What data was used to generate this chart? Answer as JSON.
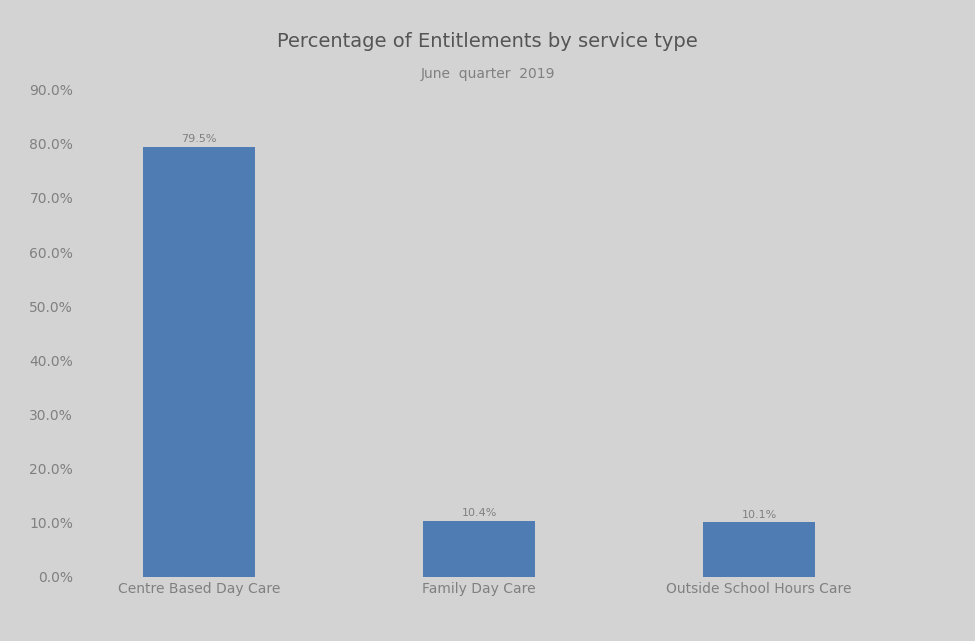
{
  "title": "Percentage of Entitlements by service type",
  "subtitle": "June  quarter  2019",
  "categories": [
    "Centre Based Day Care",
    "Family Day Care",
    "Outside School Hours Care"
  ],
  "values": [
    79.5,
    10.4,
    10.1
  ],
  "bar_color": "#4F7DB3",
  "background_color": "#D3D3D3",
  "ylim": [
    0,
    90
  ],
  "yticks": [
    0,
    10,
    20,
    30,
    40,
    50,
    60,
    70,
    80,
    90
  ],
  "ytick_labels": [
    "0.0%",
    "10.0%",
    "20.0%",
    "30.0%",
    "40.0%",
    "50.0%",
    "60.0%",
    "70.0%",
    "80.0%",
    "90.0%"
  ],
  "title_fontsize": 14,
  "subtitle_fontsize": 10,
  "tick_label_fontsize": 10,
  "annotation_fontsize": 8,
  "axis_label_color": "#808080",
  "title_color": "#555555"
}
